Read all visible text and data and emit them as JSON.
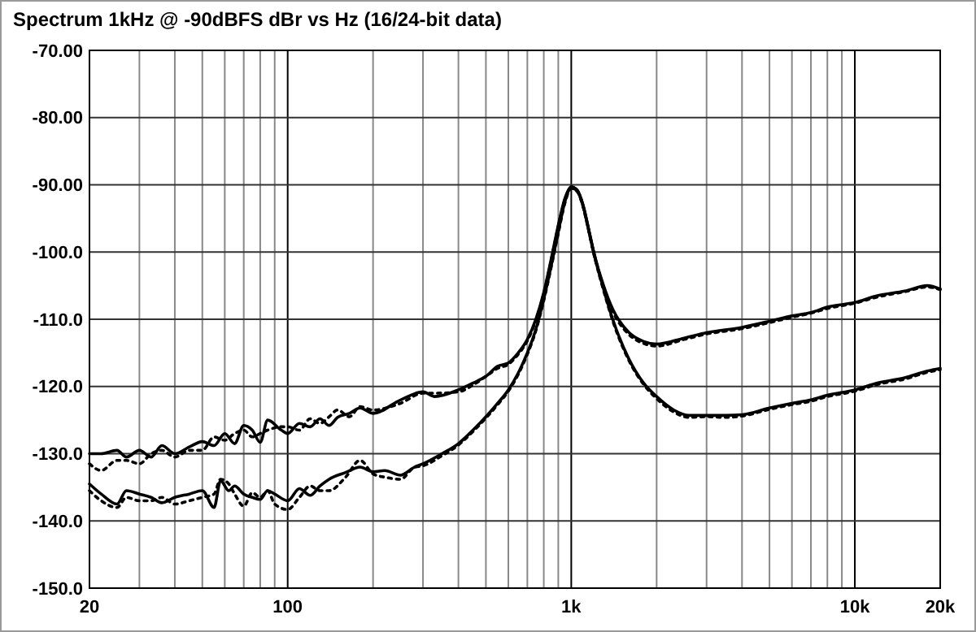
{
  "chart_data": {
    "type": "line",
    "title": "Spectrum 1kHz @ -90dBFS dBr vs Hz (16/24-bit data)",
    "log": "x",
    "grid": true,
    "marker": "none",
    "xlim": [
      20,
      20000
    ],
    "ylim": [
      -150,
      -70
    ],
    "xticks": [
      20,
      {
        "value": 30,
        "label": null
      },
      {
        "value": 40,
        "label": null
      },
      {
        "value": 50,
        "label": null
      },
      {
        "value": 60,
        "label": null
      },
      {
        "value": 70,
        "label": null
      },
      {
        "value": 80,
        "label": null
      },
      {
        "value": 90,
        "label": null
      },
      100,
      {
        "value": 200,
        "label": null
      },
      {
        "value": 300,
        "label": null
      },
      {
        "value": 400,
        "label": null
      },
      {
        "value": 500,
        "label": null
      },
      {
        "value": 600,
        "label": null
      },
      {
        "value": 700,
        "label": null
      },
      {
        "value": 800,
        "label": null
      },
      {
        "value": 900,
        "label": null
      },
      {
        "value": 1000,
        "label": "1k"
      },
      {
        "value": 2000,
        "label": null
      },
      {
        "value": 3000,
        "label": null
      },
      {
        "value": 4000,
        "label": null
      },
      {
        "value": 5000,
        "label": null
      },
      {
        "value": 6000,
        "label": null
      },
      {
        "value": 7000,
        "label": null
      },
      {
        "value": 8000,
        "label": null
      },
      {
        "value": 9000,
        "label": null
      },
      {
        "value": 10000,
        "label": "10k"
      },
      {
        "value": 20000,
        "label": "20k"
      }
    ],
    "yticks": [
      {
        "value": -70,
        "label": "-70.00"
      },
      {
        "value": -80,
        "label": "-80.00"
      },
      {
        "value": -90,
        "label": "-90.00"
      },
      {
        "value": -100,
        "label": "-100.0"
      },
      {
        "value": -110,
        "label": "-110.0"
      },
      {
        "value": -120,
        "label": "-120.0"
      },
      {
        "value": -130,
        "label": "-130.0"
      },
      {
        "value": -140,
        "label": "-140.0"
      },
      {
        "value": -150,
        "label": "-150.0"
      }
    ],
    "series": [
      {
        "color": "#000000",
        "line_style": "solid",
        "x": [
          20,
          22,
          25,
          27,
          30,
          33,
          36,
          40,
          45,
          50,
          55,
          60,
          65,
          70,
          75,
          80,
          85,
          95,
          100,
          110,
          120,
          130,
          140,
          150,
          165,
          180,
          200,
          250,
          300,
          330,
          400,
          450,
          500,
          550,
          600,
          650,
          700,
          750,
          800,
          850,
          900,
          950,
          1000,
          1050,
          1100,
          1150,
          1200,
          1300,
          1400,
          1600,
          1800,
          2000,
          2500,
          3000,
          4000,
          5000,
          6000,
          7000,
          8000,
          10000,
          12000,
          15000,
          18000,
          20000
        ],
        "values": [
          -130,
          -130,
          -129.5,
          -130.5,
          -129.5,
          -130.5,
          -128.8,
          -130,
          -129,
          -128.2,
          -128.8,
          -127,
          -128.5,
          -125.8,
          -126.5,
          -128.3,
          -125,
          -126.5,
          -127,
          -125.5,
          -126,
          -124.8,
          -125.8,
          -124.6,
          -124,
          -123.2,
          -124,
          -122,
          -120.8,
          -121.5,
          -120.5,
          -119.5,
          -118.5,
          -117,
          -116.5,
          -115,
          -113,
          -110,
          -106,
          -101,
          -96,
          -92,
          -90.3,
          -90.8,
          -93,
          -96.5,
          -100,
          -105,
          -108.5,
          -112,
          -113.3,
          -113.7,
          -112.8,
          -112,
          -111.2,
          -110.3,
          -109.5,
          -109,
          -108.2,
          -107.5,
          -106.5,
          -105.8,
          -105,
          -105.5
        ]
      },
      {
        "color": "#000000",
        "line_style": "dotted",
        "x": [
          20,
          22,
          25,
          27,
          30,
          33,
          36,
          40,
          45,
          50,
          55,
          60,
          65,
          70,
          75,
          80,
          85,
          95,
          100,
          110,
          120,
          130,
          140,
          150,
          165,
          180,
          200,
          250,
          300,
          330,
          400,
          450,
          500,
          550,
          600,
          650,
          700,
          750,
          800,
          850,
          900,
          950,
          1000,
          1050,
          1100,
          1150,
          1200,
          1300,
          1400,
          1600,
          1800,
          2000,
          2500,
          3000,
          4000,
          5000,
          6000,
          7000,
          8000,
          10000,
          12000,
          15000,
          18000,
          20000
        ],
        "values": [
          -131.5,
          -132.5,
          -131,
          -131,
          -131.5,
          -130,
          -129.5,
          -130.5,
          -129.5,
          -129.5,
          -127.5,
          -128,
          -127,
          -126.5,
          -127.5,
          -127,
          -126.5,
          -126,
          -126,
          -126.5,
          -124.8,
          -125.5,
          -124.5,
          -123.5,
          -124.5,
          -123,
          -123.5,
          -122.5,
          -121,
          -121,
          -120.8,
          -119.8,
          -118.5,
          -117.3,
          -116.7,
          -115.2,
          -113.2,
          -110.2,
          -106.2,
          -101.2,
          -96.2,
          -92.2,
          -90.5,
          -91,
          -93.2,
          -96.7,
          -100.2,
          -105.2,
          -108.8,
          -112.3,
          -113.6,
          -114,
          -113,
          -112.2,
          -111.4,
          -110.5,
          -109.7,
          -109.1,
          -108.4,
          -107.6,
          -106.7,
          -105.9,
          -105.2,
          -105.6
        ]
      },
      {
        "color": "#000000",
        "line_style": "solid",
        "x": [
          20,
          22,
          25,
          27,
          30,
          33,
          36,
          40,
          45,
          50,
          55,
          58,
          62,
          65,
          70,
          75,
          80,
          85,
          90,
          100,
          110,
          120,
          130,
          140,
          160,
          180,
          200,
          220,
          250,
          280,
          300,
          350,
          400,
          450,
          500,
          550,
          600,
          650,
          700,
          750,
          800,
          850,
          900,
          950,
          1000,
          1050,
          1100,
          1150,
          1200,
          1300,
          1400,
          1600,
          1800,
          2000,
          2300,
          2600,
          3000,
          3500,
          4000,
          5000,
          6000,
          7000,
          8000,
          10000,
          12000,
          15000,
          18000,
          20000
        ],
        "values": [
          -134.5,
          -136,
          -137.5,
          -135.5,
          -136,
          -136.5,
          -137.3,
          -136.5,
          -136,
          -135.5,
          -138,
          -134,
          -135.5,
          -134.8,
          -136,
          -136.5,
          -136.8,
          -135.5,
          -136,
          -137,
          -135.2,
          -136.2,
          -134.8,
          -133.8,
          -132.8,
          -132,
          -132.7,
          -132.5,
          -133.2,
          -132,
          -131.5,
          -130,
          -128.5,
          -126.5,
          -124.5,
          -122.5,
          -120.5,
          -118,
          -115,
          -111.5,
          -107,
          -102,
          -97,
          -92.5,
          -90.3,
          -90.8,
          -93,
          -96.5,
          -100,
          -105.5,
          -110,
          -116,
          -119.5,
          -121.5,
          -123.5,
          -124.3,
          -124.3,
          -124.3,
          -124.2,
          -123.2,
          -122.5,
          -122,
          -121.3,
          -120.5,
          -119.5,
          -118.7,
          -117.7,
          -117.3
        ]
      },
      {
        "color": "#000000",
        "line_style": "dotted",
        "x": [
          20,
          22,
          25,
          27,
          30,
          33,
          36,
          40,
          45,
          50,
          55,
          58,
          62,
          65,
          70,
          75,
          80,
          85,
          90,
          100,
          110,
          120,
          130,
          140,
          160,
          180,
          200,
          220,
          250,
          280,
          300,
          350,
          400,
          450,
          500,
          550,
          600,
          650,
          700,
          750,
          800,
          850,
          900,
          950,
          1000,
          1050,
          1100,
          1150,
          1200,
          1300,
          1400,
          1600,
          1800,
          2000,
          2300,
          2600,
          3000,
          3500,
          4000,
          5000,
          6000,
          7000,
          8000,
          10000,
          12000,
          15000,
          18000,
          20000
        ],
        "values": [
          -135.5,
          -137,
          -138,
          -136.5,
          -137,
          -137,
          -136.5,
          -137.5,
          -137,
          -136.5,
          -136,
          -133.8,
          -134.5,
          -136,
          -137.8,
          -135.8,
          -136.5,
          -135.5,
          -137.5,
          -138.3,
          -136.5,
          -134.8,
          -135.5,
          -135.5,
          -133.5,
          -131,
          -133,
          -133.5,
          -133.8,
          -132,
          -131.8,
          -130.3,
          -128.7,
          -126.7,
          -124.7,
          -122.7,
          -120.7,
          -118.2,
          -115.2,
          -111.7,
          -107.2,
          -102.2,
          -97.2,
          -92.7,
          -90.5,
          -91,
          -93.2,
          -96.7,
          -100.2,
          -105.7,
          -110.2,
          -116.2,
          -119.7,
          -121.8,
          -123.8,
          -124.6,
          -124.5,
          -124.6,
          -124.4,
          -123.4,
          -122.7,
          -122.2,
          -121.5,
          -120.7,
          -119.7,
          -118.9,
          -117.9,
          -117.5
        ]
      }
    ]
  }
}
